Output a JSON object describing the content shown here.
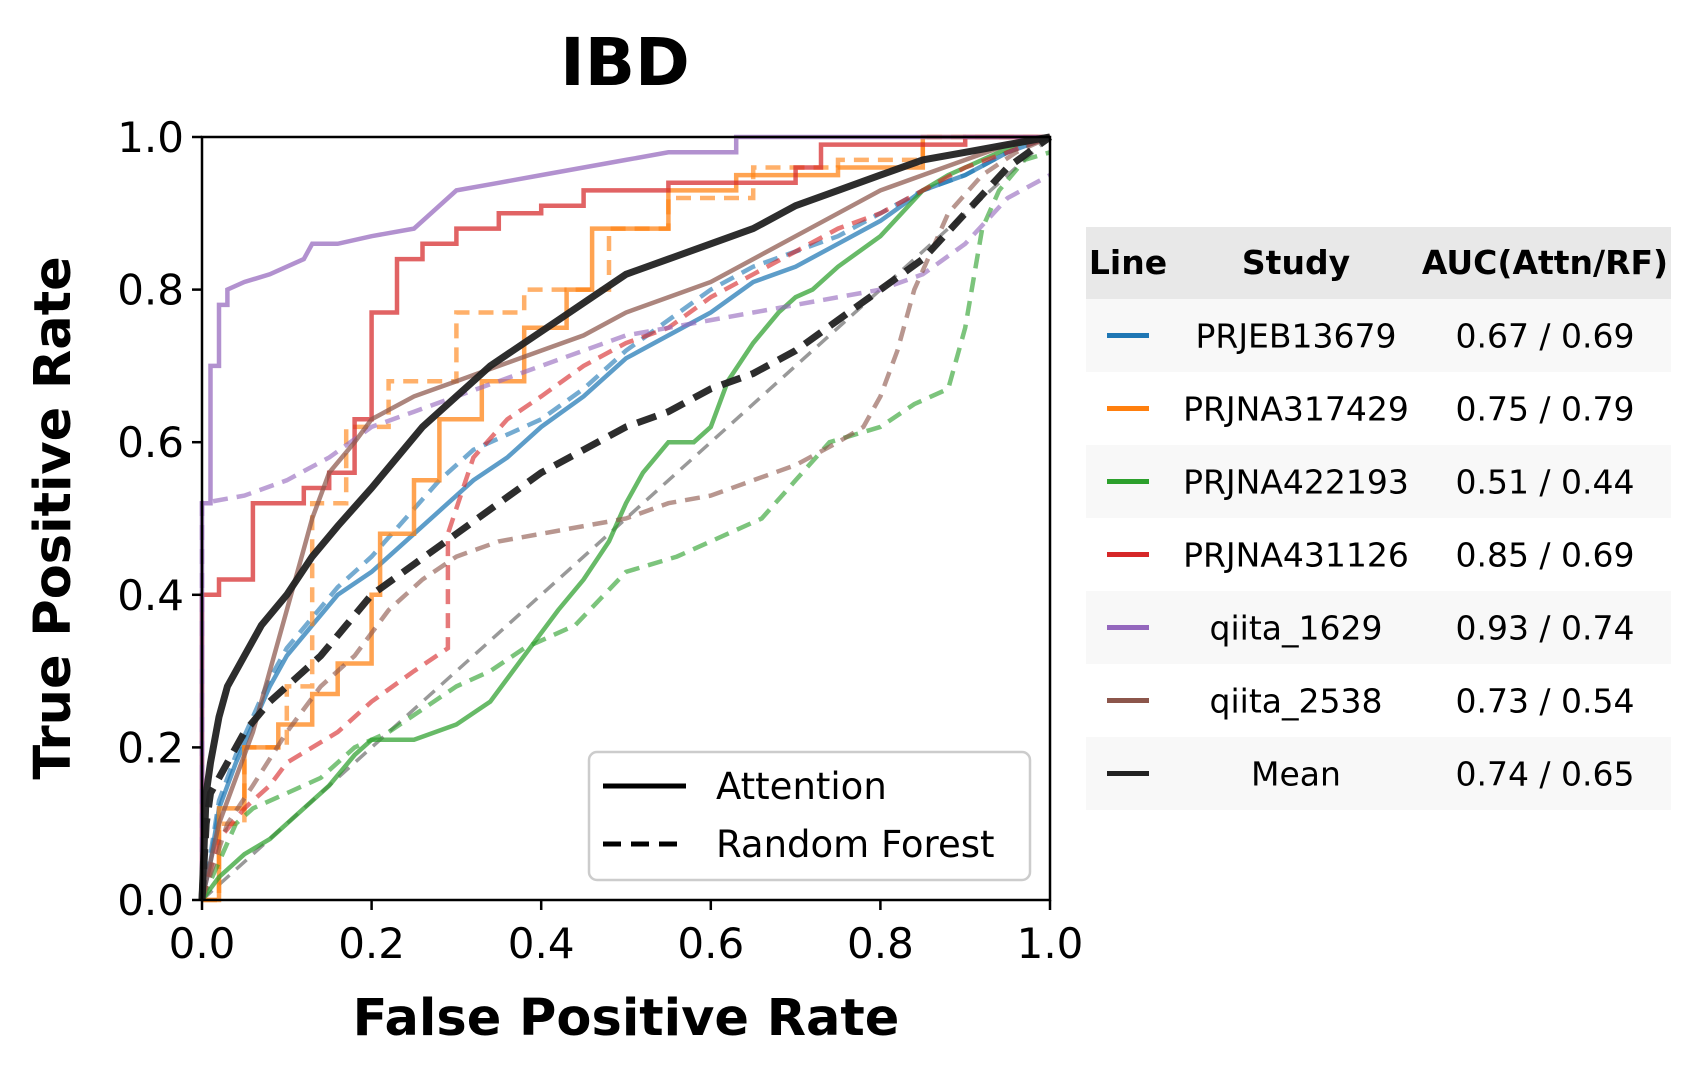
{
  "chart_data": {
    "type": "line",
    "title": "IBD",
    "xlabel": "False Positive Rate",
    "ylabel": "True Positive Rate",
    "xlim": [
      0.0,
      1.0
    ],
    "ylim": [
      0.0,
      1.0
    ],
    "xticks": [
      "0.0",
      "0.2",
      "0.4",
      "0.6",
      "0.8",
      "1.0"
    ],
    "yticks": [
      "0.0",
      "0.2",
      "0.4",
      "0.6",
      "0.8",
      "1.0"
    ],
    "grid": false,
    "legend": {
      "location": "lower right",
      "entries": [
        {
          "label": "Attention",
          "style": "solid"
        },
        {
          "label": "Random Forest",
          "style": "dashed"
        }
      ]
    },
    "table": {
      "headers": [
        "Line",
        "Study",
        "AUC(Attn/RF)"
      ],
      "rows": [
        {
          "study": "PRJEB13679",
          "auc": "0.67 / 0.69",
          "color": "#1f77b4"
        },
        {
          "study": "PRJNA317429",
          "auc": "0.75 / 0.79",
          "color": "#ff7f0e"
        },
        {
          "study": "PRJNA422193",
          "auc": "0.51 / 0.44",
          "color": "#2ca02c"
        },
        {
          "study": "PRJNA431126",
          "auc": "0.85 / 0.69",
          "color": "#d62728"
        },
        {
          "study": "qiita_1629",
          "auc": "0.93 / 0.74",
          "color": "#9467bd"
        },
        {
          "study": "qiita_2538",
          "auc": "0.73 / 0.54",
          "color": "#8c564b"
        },
        {
          "study": "Mean",
          "auc": "0.74 / 0.65",
          "color": "#222222"
        }
      ]
    },
    "series": [
      {
        "name": "PRJEB13679",
        "method": "Attention",
        "color": "#1f77b4",
        "x": [
          0,
          0.01,
          0.02,
          0.04,
          0.06,
          0.08,
          0.1,
          0.13,
          0.16,
          0.2,
          0.24,
          0.28,
          0.32,
          0.36,
          0.4,
          0.45,
          0.5,
          0.55,
          0.6,
          0.65,
          0.7,
          0.75,
          0.8,
          0.85,
          0.9,
          0.95,
          1.0
        ],
        "y": [
          0,
          0.05,
          0.12,
          0.18,
          0.23,
          0.28,
          0.32,
          0.36,
          0.4,
          0.43,
          0.47,
          0.51,
          0.55,
          0.58,
          0.62,
          0.66,
          0.71,
          0.74,
          0.77,
          0.81,
          0.83,
          0.86,
          0.89,
          0.93,
          0.95,
          0.98,
          1.0
        ]
      },
      {
        "name": "PRJEB13679",
        "method": "Random Forest",
        "color": "#1f77b4",
        "x": [
          0,
          0.01,
          0.02,
          0.04,
          0.06,
          0.08,
          0.1,
          0.13,
          0.16,
          0.2,
          0.24,
          0.28,
          0.32,
          0.36,
          0.4,
          0.45,
          0.5,
          0.55,
          0.6,
          0.65,
          0.7,
          0.75,
          0.8,
          0.85,
          0.9,
          0.95,
          1.0
        ],
        "y": [
          0,
          0.06,
          0.13,
          0.19,
          0.24,
          0.29,
          0.33,
          0.37,
          0.41,
          0.45,
          0.5,
          0.55,
          0.59,
          0.61,
          0.63,
          0.67,
          0.72,
          0.76,
          0.8,
          0.83,
          0.85,
          0.87,
          0.9,
          0.93,
          0.95,
          0.98,
          1.0
        ]
      },
      {
        "name": "PRJNA317429",
        "method": "Attention",
        "color": "#ff7f0e",
        "x": [
          0,
          0.02,
          0.02,
          0.05,
          0.05,
          0.09,
          0.09,
          0.13,
          0.13,
          0.16,
          0.16,
          0.2,
          0.2,
          0.21,
          0.21,
          0.25,
          0.25,
          0.28,
          0.28,
          0.33,
          0.33,
          0.38,
          0.38,
          0.43,
          0.43,
          0.46,
          0.46,
          0.55,
          0.55,
          0.63,
          0.63,
          0.75,
          0.75,
          0.85,
          0.85,
          1.0
        ],
        "y": [
          0,
          0,
          0.12,
          0.12,
          0.2,
          0.2,
          0.23,
          0.23,
          0.27,
          0.27,
          0.31,
          0.31,
          0.4,
          0.4,
          0.48,
          0.48,
          0.55,
          0.55,
          0.63,
          0.63,
          0.68,
          0.68,
          0.75,
          0.75,
          0.8,
          0.8,
          0.88,
          0.88,
          0.93,
          0.93,
          0.95,
          0.95,
          0.96,
          0.96,
          1.0,
          1.0
        ]
      },
      {
        "name": "PRJNA317429",
        "method": "Random Forest",
        "color": "#ff7f0e",
        "x": [
          0,
          0.02,
          0.02,
          0.05,
          0.05,
          0.1,
          0.1,
          0.13,
          0.13,
          0.17,
          0.17,
          0.22,
          0.22,
          0.3,
          0.3,
          0.38,
          0.38,
          0.48,
          0.48,
          0.55,
          0.55,
          0.65,
          0.65,
          0.75,
          0.75,
          0.85,
          0.85,
          1.0
        ],
        "y": [
          0,
          0,
          0.1,
          0.1,
          0.2,
          0.2,
          0.28,
          0.28,
          0.52,
          0.52,
          0.62,
          0.62,
          0.68,
          0.68,
          0.77,
          0.77,
          0.8,
          0.8,
          0.88,
          0.88,
          0.92,
          0.92,
          0.96,
          0.96,
          0.97,
          0.97,
          1.0,
          1.0
        ]
      },
      {
        "name": "PRJNA422193",
        "method": "Attention",
        "color": "#2ca02c",
        "x": [
          0,
          0.02,
          0.05,
          0.08,
          0.11,
          0.15,
          0.18,
          0.2,
          0.25,
          0.3,
          0.34,
          0.38,
          0.42,
          0.45,
          0.48,
          0.5,
          0.52,
          0.55,
          0.58,
          0.6,
          0.62,
          0.65,
          0.68,
          0.7,
          0.72,
          0.75,
          0.8,
          0.85,
          0.88,
          0.92,
          0.96,
          1.0
        ],
        "y": [
          0,
          0.03,
          0.06,
          0.08,
          0.11,
          0.15,
          0.19,
          0.21,
          0.21,
          0.23,
          0.26,
          0.32,
          0.38,
          0.42,
          0.47,
          0.52,
          0.56,
          0.6,
          0.6,
          0.62,
          0.68,
          0.73,
          0.77,
          0.79,
          0.8,
          0.83,
          0.87,
          0.93,
          0.95,
          0.97,
          0.99,
          1.0
        ]
      },
      {
        "name": "PRJNA422193",
        "method": "Random Forest",
        "color": "#2ca02c",
        "x": [
          0,
          0.02,
          0.04,
          0.06,
          0.1,
          0.14,
          0.18,
          0.22,
          0.26,
          0.3,
          0.34,
          0.38,
          0.44,
          0.5,
          0.56,
          0.6,
          0.66,
          0.7,
          0.74,
          0.8,
          0.84,
          0.88,
          0.9,
          0.92,
          0.94,
          0.97,
          1.0
        ],
        "y": [
          0,
          0.05,
          0.1,
          0.12,
          0.14,
          0.16,
          0.2,
          0.22,
          0.25,
          0.28,
          0.3,
          0.33,
          0.36,
          0.43,
          0.45,
          0.47,
          0.5,
          0.55,
          0.6,
          0.62,
          0.65,
          0.67,
          0.75,
          0.88,
          0.93,
          0.97,
          0.98
        ]
      },
      {
        "name": "PRJNA431126",
        "method": "Attention",
        "color": "#d62728",
        "x": [
          0,
          0.0,
          0.02,
          0.02,
          0.06,
          0.06,
          0.12,
          0.12,
          0.15,
          0.15,
          0.18,
          0.18,
          0.2,
          0.2,
          0.23,
          0.23,
          0.26,
          0.26,
          0.3,
          0.3,
          0.35,
          0.35,
          0.4,
          0.4,
          0.45,
          0.45,
          0.55,
          0.55,
          0.7,
          0.7,
          0.73,
          0.73,
          0.9,
          0.9,
          1.0
        ],
        "y": [
          0,
          0.4,
          0.4,
          0.42,
          0.42,
          0.52,
          0.52,
          0.54,
          0.54,
          0.56,
          0.56,
          0.63,
          0.63,
          0.77,
          0.77,
          0.84,
          0.84,
          0.86,
          0.86,
          0.88,
          0.88,
          0.9,
          0.9,
          0.91,
          0.91,
          0.93,
          0.93,
          0.94,
          0.94,
          0.96,
          0.96,
          0.99,
          0.99,
          1.0,
          1.0
        ]
      },
      {
        "name": "PRJNA431126",
        "method": "Random Forest",
        "color": "#d62728",
        "x": [
          0,
          0.02,
          0.05,
          0.08,
          0.1,
          0.13,
          0.16,
          0.2,
          0.25,
          0.29,
          0.29,
          0.32,
          0.36,
          0.4,
          0.45,
          0.5,
          0.55,
          0.6,
          0.65,
          0.7,
          0.75,
          0.8,
          0.85,
          0.9,
          0.95,
          1.0
        ],
        "y": [
          0,
          0.08,
          0.12,
          0.15,
          0.18,
          0.2,
          0.22,
          0.26,
          0.3,
          0.33,
          0.48,
          0.58,
          0.63,
          0.66,
          0.7,
          0.73,
          0.75,
          0.79,
          0.82,
          0.85,
          0.88,
          0.9,
          0.93,
          0.96,
          0.98,
          1.0
        ]
      },
      {
        "name": "qiita_1629",
        "method": "Attention",
        "color": "#9467bd",
        "x": [
          0,
          0.0,
          0.01,
          0.01,
          0.02,
          0.02,
          0.03,
          0.03,
          0.05,
          0.08,
          0.12,
          0.13,
          0.16,
          0.2,
          0.25,
          0.27,
          0.3,
          0.35,
          0.4,
          0.45,
          0.5,
          0.55,
          0.63,
          0.63,
          0.8,
          1.0
        ],
        "y": [
          0,
          0.52,
          0.52,
          0.7,
          0.7,
          0.78,
          0.78,
          0.8,
          0.81,
          0.82,
          0.84,
          0.86,
          0.86,
          0.87,
          0.88,
          0.9,
          0.93,
          0.94,
          0.95,
          0.96,
          0.97,
          0.98,
          0.98,
          1.0,
          1.0,
          1.0
        ]
      },
      {
        "name": "qiita_1629",
        "method": "Random Forest",
        "color": "#9467bd",
        "x": [
          0,
          0.0,
          0.05,
          0.1,
          0.15,
          0.2,
          0.25,
          0.3,
          0.35,
          0.4,
          0.45,
          0.5,
          0.55,
          0.6,
          0.65,
          0.7,
          0.75,
          0.8,
          0.85,
          0.9,
          0.95,
          1.0
        ],
        "y": [
          0,
          0.52,
          0.53,
          0.55,
          0.58,
          0.62,
          0.64,
          0.66,
          0.68,
          0.7,
          0.72,
          0.74,
          0.75,
          0.76,
          0.77,
          0.78,
          0.79,
          0.8,
          0.82,
          0.86,
          0.92,
          0.95
        ]
      },
      {
        "name": "qiita_2538",
        "method": "Attention",
        "color": "#8c564b",
        "x": [
          0,
          0.02,
          0.04,
          0.06,
          0.08,
          0.1,
          0.12,
          0.13,
          0.15,
          0.18,
          0.2,
          0.25,
          0.3,
          0.35,
          0.4,
          0.45,
          0.5,
          0.55,
          0.6,
          0.65,
          0.7,
          0.75,
          0.8,
          0.85,
          0.9,
          0.95,
          1.0
        ],
        "y": [
          0,
          0.1,
          0.16,
          0.22,
          0.3,
          0.38,
          0.46,
          0.5,
          0.56,
          0.6,
          0.63,
          0.66,
          0.68,
          0.7,
          0.72,
          0.74,
          0.77,
          0.79,
          0.81,
          0.84,
          0.87,
          0.9,
          0.93,
          0.95,
          0.97,
          0.99,
          1.0
        ]
      },
      {
        "name": "qiita_2538",
        "method": "Random Forest",
        "color": "#8c564b",
        "x": [
          0,
          0.03,
          0.06,
          0.1,
          0.14,
          0.18,
          0.22,
          0.26,
          0.3,
          0.35,
          0.4,
          0.45,
          0.5,
          0.55,
          0.6,
          0.65,
          0.7,
          0.75,
          0.78,
          0.8,
          0.82,
          0.84,
          0.86,
          0.88,
          0.92,
          0.96,
          1.0
        ],
        "y": [
          0,
          0.1,
          0.15,
          0.22,
          0.28,
          0.32,
          0.38,
          0.42,
          0.45,
          0.47,
          0.48,
          0.49,
          0.5,
          0.52,
          0.53,
          0.55,
          0.57,
          0.6,
          0.62,
          0.66,
          0.72,
          0.8,
          0.85,
          0.9,
          0.95,
          0.98,
          1.0
        ]
      },
      {
        "name": "Mean",
        "method": "Attention",
        "color": "#222222",
        "x": [
          0,
          0.005,
          0.01,
          0.02,
          0.03,
          0.05,
          0.07,
          0.1,
          0.13,
          0.16,
          0.2,
          0.23,
          0.26,
          0.3,
          0.34,
          0.38,
          0.42,
          0.46,
          0.5,
          0.55,
          0.6,
          0.65,
          0.7,
          0.75,
          0.8,
          0.85,
          0.9,
          0.95,
          1.0
        ],
        "y": [
          0,
          0.14,
          0.18,
          0.24,
          0.28,
          0.32,
          0.36,
          0.4,
          0.45,
          0.49,
          0.54,
          0.58,
          0.62,
          0.66,
          0.7,
          0.73,
          0.76,
          0.79,
          0.82,
          0.84,
          0.86,
          0.88,
          0.91,
          0.93,
          0.95,
          0.97,
          0.98,
          0.99,
          1.0
        ]
      },
      {
        "name": "Mean",
        "method": "Random Forest",
        "color": "#222222",
        "x": [
          0,
          0.005,
          0.01,
          0.03,
          0.05,
          0.08,
          0.11,
          0.14,
          0.17,
          0.2,
          0.25,
          0.3,
          0.35,
          0.4,
          0.45,
          0.5,
          0.55,
          0.6,
          0.65,
          0.7,
          0.75,
          0.8,
          0.85,
          0.9,
          0.95,
          1.0
        ],
        "y": [
          0,
          0.1,
          0.14,
          0.18,
          0.22,
          0.26,
          0.29,
          0.32,
          0.36,
          0.4,
          0.44,
          0.48,
          0.52,
          0.56,
          0.59,
          0.62,
          0.64,
          0.67,
          0.69,
          0.72,
          0.76,
          0.8,
          0.84,
          0.9,
          0.96,
          1.0
        ]
      }
    ]
  }
}
